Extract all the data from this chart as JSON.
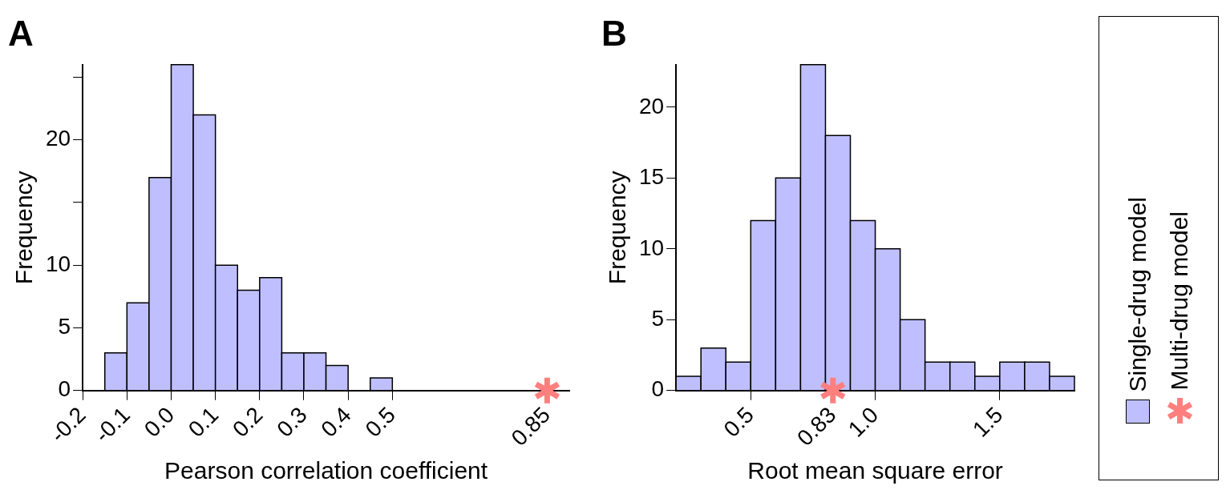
{
  "chart_data": [
    {
      "type": "histogram",
      "title": "A",
      "xlabel": "Pearson correlation coefficient",
      "ylabel": "Frequency",
      "bins": [
        -0.15,
        -0.1,
        -0.05,
        0,
        0.05,
        0.1,
        0.15,
        0.2,
        0.25,
        0.3,
        0.35,
        0.4,
        0.45,
        0.5
      ],
      "values": [
        3,
        7,
        17,
        26,
        22,
        10,
        8,
        9,
        3,
        3,
        2,
        0,
        1
      ],
      "color": "#bfbfff",
      "series": [
        {
          "type": "scatter",
          "color": "#ff7f7f",
          "x": [
            0.85
          ],
          "values": [
            0
          ],
          "marker": "star"
        }
      ],
      "xlim": [
        -0.2,
        0.9
      ],
      "xticks": [
        -0.2,
        -0.1,
        {
          "value": 0,
          "label": "0.0"
        },
        0.1,
        0.2,
        0.3,
        0.4,
        0.5,
        0.85
      ],
      "ylim": [
        0,
        26
      ],
      "yticks": [
        0,
        5,
        10,
        {
          "value": 15,
          "label": null
        },
        20,
        {
          "value": 25,
          "label": null
        }
      ],
      "grid": false,
      "legend": false
    },
    {
      "type": "histogram",
      "title": "B",
      "xlabel": "Root mean square error",
      "ylabel": "Frequency",
      "bins": [
        0.2,
        0.3,
        0.4,
        0.5,
        0.6,
        0.7,
        0.8,
        0.9,
        1.0,
        1.1,
        1.2,
        1.3,
        1.4,
        1.5,
        1.6,
        1.7,
        1.8
      ],
      "series": [
        {
          "name": "Single-drug model",
          "type": "histogram",
          "color": "#bfbfff",
          "values": [
            1,
            3,
            2,
            12,
            15,
            23,
            18,
            12,
            10,
            5,
            2,
            2,
            1,
            2,
            2,
            1
          ]
        },
        {
          "name": "Multi-drug model",
          "type": "scatter",
          "color": "#ff7f7f",
          "x": [
            0.83
          ],
          "values": [
            0
          ],
          "marker": "star"
        }
      ],
      "xlim": [
        0.2,
        1.8
      ],
      "xticks": [
        0.5,
        0.83,
        {
          "value": 1.0,
          "label": "1.0"
        },
        1.5
      ],
      "ylim": [
        0,
        23
      ],
      "yticks": [
        0,
        5,
        10,
        15,
        20
      ],
      "grid": false,
      "legend": "right"
    }
  ]
}
